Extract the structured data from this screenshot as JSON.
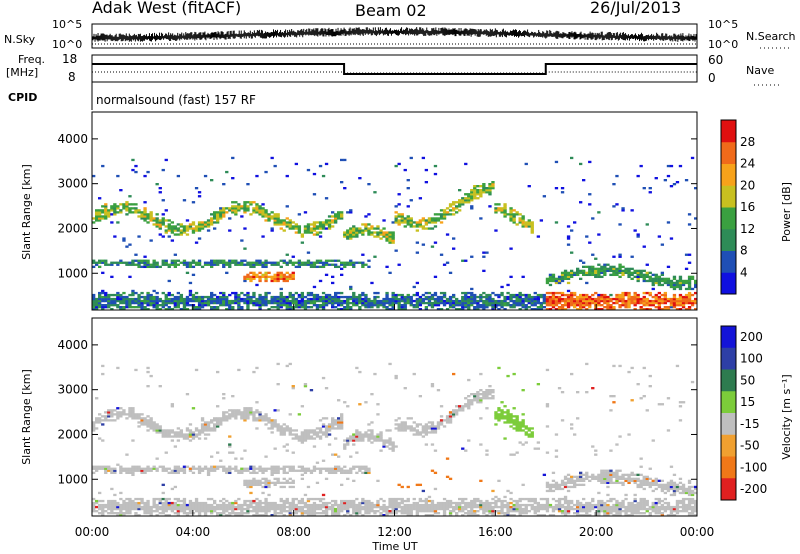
{
  "header": {
    "station": "Adak West (fitACF)",
    "beam": "Beam 02",
    "date": "26/Jul/2013"
  },
  "strips": {
    "nsky_label": "N.Sky",
    "nsky_ticks": [
      "10^5",
      "10^0"
    ],
    "nsearch_label": "N.Search",
    "nsearch_ticks": [
      "10^5",
      "10^0"
    ],
    "freq_label_1": "Freq.",
    "freq_label_2": "[MHz]",
    "freq_ticks": [
      "18",
      "8"
    ],
    "nave_label": "Nave",
    "nave_ticks": [
      "60",
      "0"
    ],
    "cpid_label": "CPID",
    "cpid_text": "normalsound (fast) 157 RF"
  },
  "colors": {
    "power": [
      "#1010e0",
      "#1f4fb5",
      "#2e8b57",
      "#3aa040",
      "#c8c020",
      "#f7a21a",
      "#f06a1a",
      "#e01010"
    ],
    "velocity": [
      "#1414d8",
      "#2e3fa6",
      "#2e7b4f",
      "#7ccc3a",
      "#bfbfbf",
      "#f0a030",
      "#f07818",
      "#e02020"
    ]
  },
  "chart_data": [
    {
      "type": "heatmap",
      "title": "Power",
      "xlabel": "Time UT",
      "ylabel": "Slant Range [km]",
      "x_ticks": [
        "00:00",
        "04:00",
        "08:00",
        "12:00",
        "16:00",
        "20:00",
        "00:00"
      ],
      "y_ticks": [
        "1000",
        "2000",
        "3000",
        "4000"
      ],
      "xlim": [
        0,
        24
      ],
      "ylim": [
        180,
        4600
      ],
      "colorbar": {
        "label": "Power [dB]",
        "ticks": [
          "4",
          "8",
          "12",
          "16",
          "20",
          "24",
          "28"
        ],
        "range": [
          0,
          32
        ]
      }
    },
    {
      "type": "heatmap",
      "title": "Velocity",
      "xlabel": "Time UT",
      "ylabel": "Slant Range [km]",
      "x_ticks": [
        "00:00",
        "04:00",
        "08:00",
        "12:00",
        "16:00",
        "20:00",
        "00:00"
      ],
      "y_ticks": [
        "1000",
        "2000",
        "3000",
        "4000"
      ],
      "xlim": [
        0,
        24
      ],
      "ylim": [
        180,
        4600
      ],
      "colorbar": {
        "label": "Velocity [m s⁻¹]",
        "ticks": [
          "200",
          "100",
          "50",
          "15",
          "-15",
          "-50",
          "-100",
          "-200"
        ]
      }
    }
  ]
}
